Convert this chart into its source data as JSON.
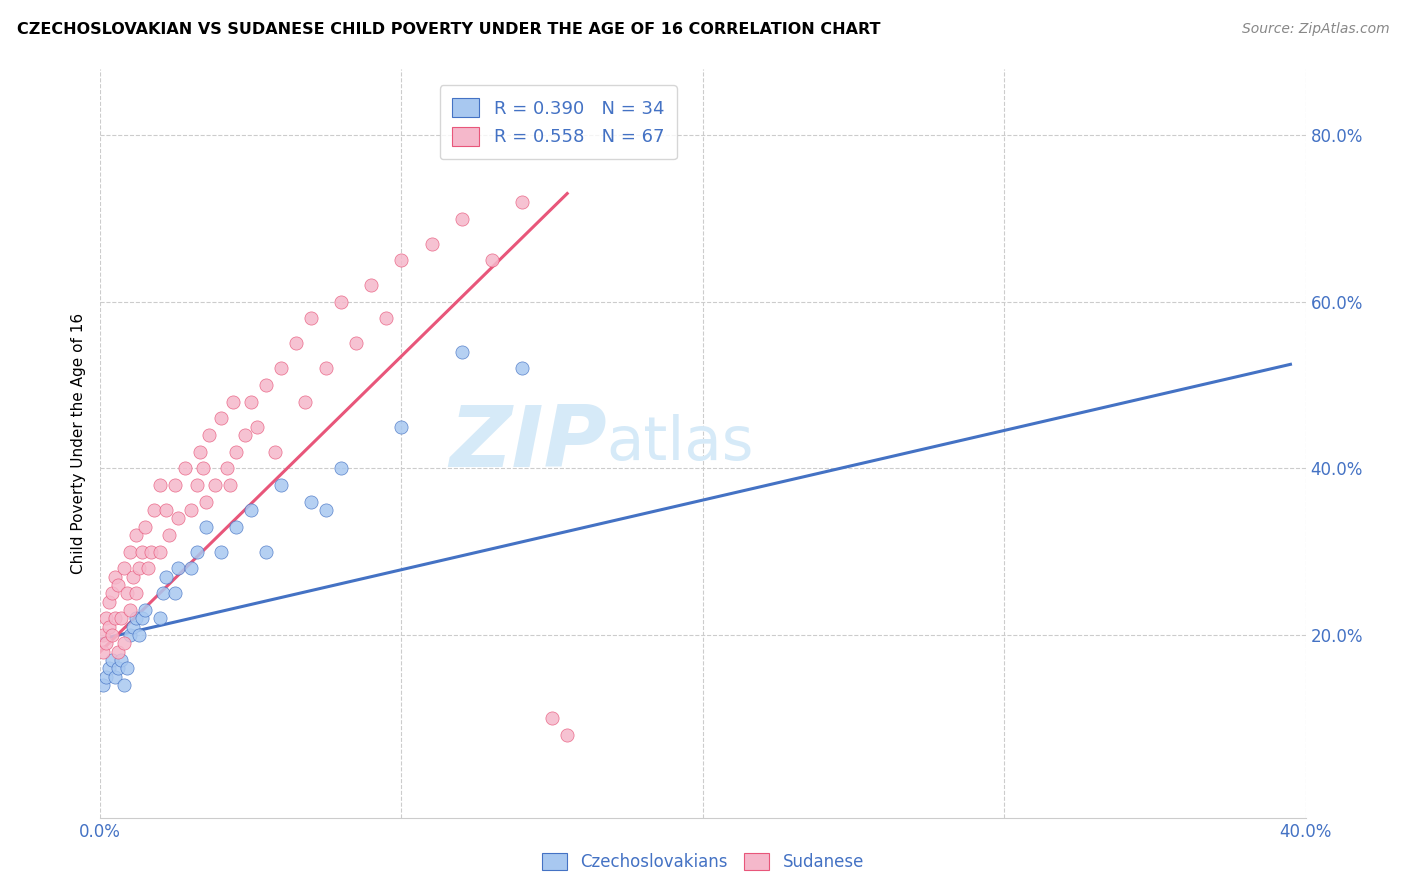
{
  "title": "CZECHOSLOVAKIAN VS SUDANESE CHILD POVERTY UNDER THE AGE OF 16 CORRELATION CHART",
  "source": "Source: ZipAtlas.com",
  "ylabel": "Child Poverty Under the Age of 16",
  "xlim": [
    0.0,
    0.4
  ],
  "ylim": [
    -0.02,
    0.88
  ],
  "legend_r1": "R = 0.390",
  "legend_n1": "N = 34",
  "legend_r2": "R = 0.558",
  "legend_n2": "N = 67",
  "color_czech": "#A8C8F0",
  "color_sudanese": "#F5B8CB",
  "color_czech_line": "#4472C4",
  "color_sudanese_line": "#E8567A",
  "watermark_zip": "ZIP",
  "watermark_atlas": "atlas",
  "watermark_color": "#D6EAF8",
  "czech_scatter_x": [
    0.001,
    0.002,
    0.003,
    0.004,
    0.005,
    0.006,
    0.007,
    0.008,
    0.009,
    0.01,
    0.011,
    0.012,
    0.013,
    0.014,
    0.015,
    0.02,
    0.021,
    0.022,
    0.025,
    0.026,
    0.03,
    0.032,
    0.035,
    0.04,
    0.045,
    0.05,
    0.055,
    0.06,
    0.07,
    0.075,
    0.08,
    0.1,
    0.12,
    0.14
  ],
  "czech_scatter_y": [
    0.14,
    0.15,
    0.16,
    0.17,
    0.15,
    0.16,
    0.17,
    0.14,
    0.16,
    0.2,
    0.21,
    0.22,
    0.2,
    0.22,
    0.23,
    0.22,
    0.25,
    0.27,
    0.25,
    0.28,
    0.28,
    0.3,
    0.33,
    0.3,
    0.33,
    0.35,
    0.3,
    0.38,
    0.36,
    0.35,
    0.4,
    0.45,
    0.54,
    0.52
  ],
  "sudanese_scatter_x": [
    0.001,
    0.001,
    0.002,
    0.002,
    0.003,
    0.003,
    0.004,
    0.004,
    0.005,
    0.005,
    0.006,
    0.006,
    0.007,
    0.008,
    0.008,
    0.009,
    0.01,
    0.01,
    0.011,
    0.012,
    0.012,
    0.013,
    0.014,
    0.015,
    0.016,
    0.017,
    0.018,
    0.02,
    0.02,
    0.022,
    0.023,
    0.025,
    0.026,
    0.028,
    0.03,
    0.032,
    0.033,
    0.034,
    0.035,
    0.036,
    0.038,
    0.04,
    0.042,
    0.043,
    0.044,
    0.045,
    0.048,
    0.05,
    0.052,
    0.055,
    0.058,
    0.06,
    0.065,
    0.068,
    0.07,
    0.075,
    0.08,
    0.085,
    0.09,
    0.095,
    0.1,
    0.11,
    0.12,
    0.13,
    0.14,
    0.15,
    0.155
  ],
  "sudanese_scatter_y": [
    0.18,
    0.2,
    0.19,
    0.22,
    0.21,
    0.24,
    0.2,
    0.25,
    0.22,
    0.27,
    0.18,
    0.26,
    0.22,
    0.28,
    0.19,
    0.25,
    0.23,
    0.3,
    0.27,
    0.25,
    0.32,
    0.28,
    0.3,
    0.33,
    0.28,
    0.3,
    0.35,
    0.3,
    0.38,
    0.35,
    0.32,
    0.38,
    0.34,
    0.4,
    0.35,
    0.38,
    0.42,
    0.4,
    0.36,
    0.44,
    0.38,
    0.46,
    0.4,
    0.38,
    0.48,
    0.42,
    0.44,
    0.48,
    0.45,
    0.5,
    0.42,
    0.52,
    0.55,
    0.48,
    0.58,
    0.52,
    0.6,
    0.55,
    0.62,
    0.58,
    0.65,
    0.67,
    0.7,
    0.65,
    0.72,
    0.1,
    0.08
  ],
  "czech_line_x": [
    0.0,
    0.395
  ],
  "czech_line_y": [
    0.195,
    0.525
  ],
  "sudanese_line_x": [
    0.0,
    0.155
  ],
  "sudanese_line_y": [
    0.18,
    0.73
  ]
}
